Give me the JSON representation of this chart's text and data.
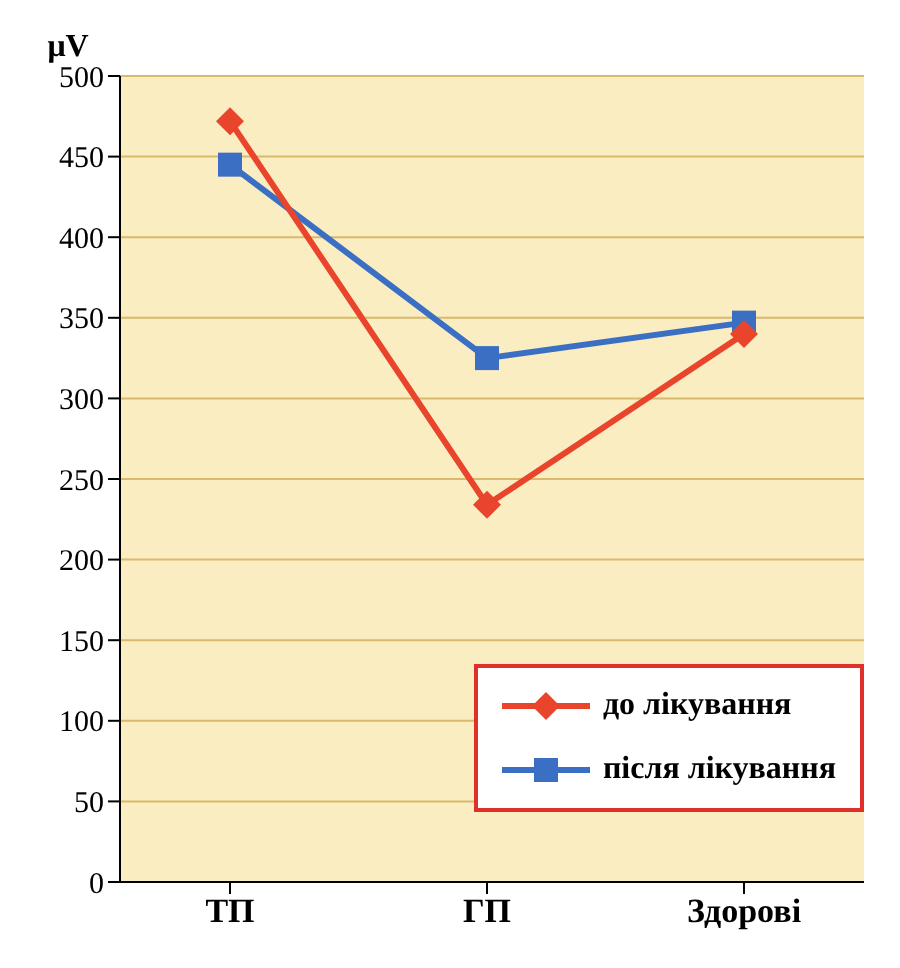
{
  "chart_data": {
    "type": "line",
    "ylabel": "μV",
    "categories": [
      "ТП",
      "ГП",
      "Здорові"
    ],
    "series": [
      {
        "name": "до лікування",
        "color": "#e8452c",
        "values": [
          472,
          234,
          340
        ],
        "marker": "diamond"
      },
      {
        "name": "після лікування",
        "color": "#3a6fc4",
        "values": [
          445,
          325,
          347
        ],
        "marker": "square"
      }
    ],
    "ylim": [
      0,
      500
    ],
    "yticks": [
      0,
      50,
      100,
      150,
      200,
      250,
      300,
      350,
      400,
      450,
      500
    ],
    "grid": "y",
    "legend": "bottom right"
  }
}
